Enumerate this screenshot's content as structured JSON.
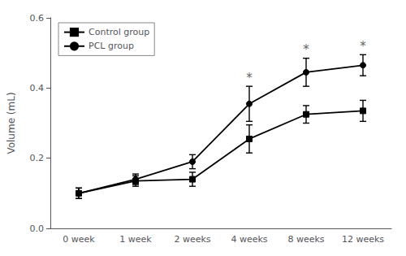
{
  "chart_data": {
    "type": "line",
    "categories": [
      "0 week",
      "1 week",
      "2 weeks",
      "4 weeks",
      "8 weeks",
      "12 weeks"
    ],
    "series": [
      {
        "name": "Control group",
        "color": "#000000",
        "marker": "square",
        "values": [
          0.1,
          0.135,
          0.14,
          0.255,
          0.325,
          0.335
        ],
        "yerr": [
          0.015,
          0.015,
          0.02,
          0.04,
          0.025,
          0.03
        ]
      },
      {
        "name": "PCL group",
        "color": "#000000",
        "marker": "circle",
        "values": [
          0.1,
          0.14,
          0.19,
          0.355,
          0.445,
          0.465
        ],
        "yerr": [
          0.015,
          0.015,
          0.02,
          0.05,
          0.04,
          0.03
        ]
      }
    ],
    "annotations": [
      {
        "x": "4 weeks",
        "series": "PCL group",
        "text": "*",
        "color": "#666666"
      },
      {
        "x": "8 weeks",
        "series": "PCL group",
        "text": "*",
        "color": "#666666"
      },
      {
        "x": "12 weeks",
        "series": "PCL group",
        "text": "*",
        "color": "#666666"
      }
    ],
    "ylabel": "Volume (mL)",
    "ylim": [
      0.0,
      0.6
    ],
    "yticks": [
      {
        "value": 0.0,
        "label": "0.0"
      },
      0.2,
      0.4,
      0.6
    ],
    "grid": false,
    "legend": "upper left"
  }
}
